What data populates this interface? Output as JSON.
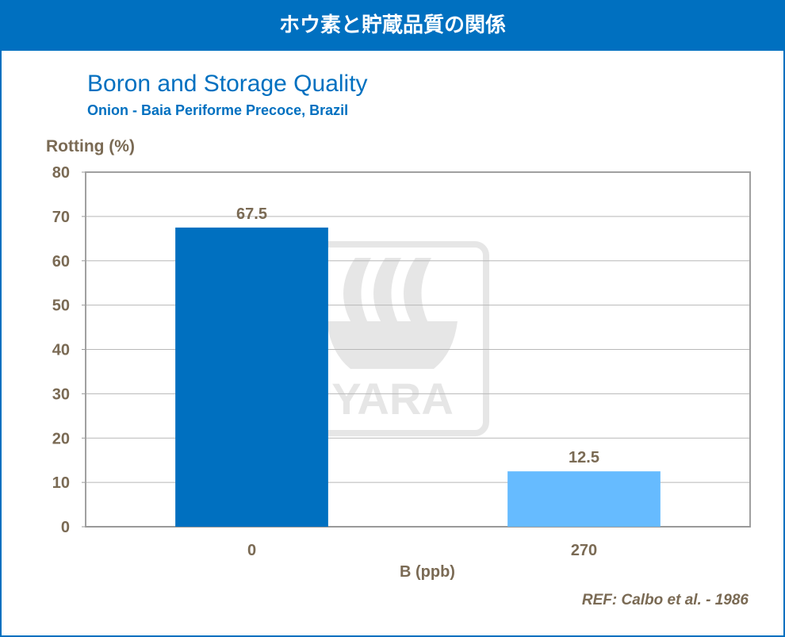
{
  "header": {
    "title": "ホウ素と貯蔵品質の関係"
  },
  "chart_data": {
    "type": "bar",
    "title": "Boron and Storage Quality",
    "subtitle": "Onion - Baia Periforme Precoce, Brazil",
    "ylabel": "Rotting (%)",
    "xlabel": "B (ppb)",
    "categories": [
      "0",
      "270"
    ],
    "values": [
      67.5,
      12.5
    ],
    "data_labels": [
      "67.5",
      "12.5"
    ],
    "ylim": [
      0,
      80
    ],
    "yticks": [
      0,
      10,
      20,
      30,
      40,
      50,
      60,
      70,
      80
    ],
    "grid": true,
    "colors": [
      "#0070C0",
      "#66BBFF"
    ]
  },
  "watermark": "YARA",
  "reference": "REF: Calbo et al. - 1986"
}
